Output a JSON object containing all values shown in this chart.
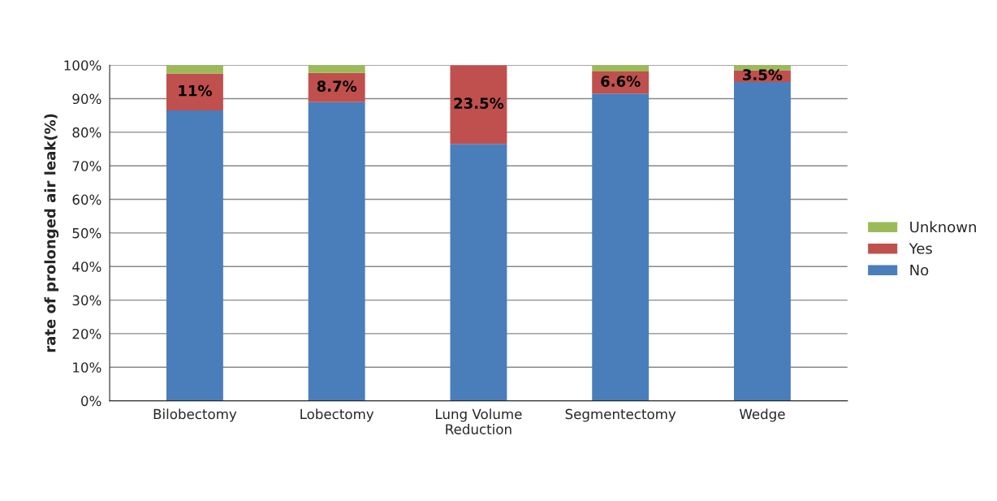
{
  "chart_data": {
    "type": "bar",
    "stacked": true,
    "ylabel": "rate of prolonged air leak(%)",
    "categories": [
      "Bilobectomy",
      "Lobectomy",
      "Lung Volume\nReduction",
      "Segmentectomy",
      "Wedge"
    ],
    "series": [
      {
        "name": "No",
        "color": "#4a7ebb",
        "values": [
          86.5,
          89,
          76.5,
          91.5,
          95
        ]
      },
      {
        "name": "Yes",
        "color": "#c0504d",
        "values": [
          11,
          8.7,
          23.5,
          6.6,
          3.5
        ],
        "value_labels": [
          "11%",
          "8.7%",
          "23.5%",
          "6.6%",
          "3.5%"
        ]
      },
      {
        "name": "Unknown",
        "color": "#9bbb59",
        "values": [
          2.5,
          2.3,
          null,
          1.9,
          1.5
        ]
      }
    ],
    "ylim": [
      0,
      100
    ],
    "yticks": [
      {
        "value": 0,
        "label": "0%"
      },
      {
        "value": 10,
        "label": "10%"
      },
      {
        "value": 20,
        "label": "20%"
      },
      {
        "value": 30,
        "label": "30%"
      },
      {
        "value": 40,
        "label": "40%"
      },
      {
        "value": 50,
        "label": "50%"
      },
      {
        "value": 60,
        "label": "60%"
      },
      {
        "value": 70,
        "label": "70%"
      },
      {
        "value": 80,
        "label": "80%"
      },
      {
        "value": 90,
        "label": "90%"
      },
      {
        "value": 100,
        "label": "100%"
      }
    ],
    "grid": "y",
    "legend": "right"
  }
}
